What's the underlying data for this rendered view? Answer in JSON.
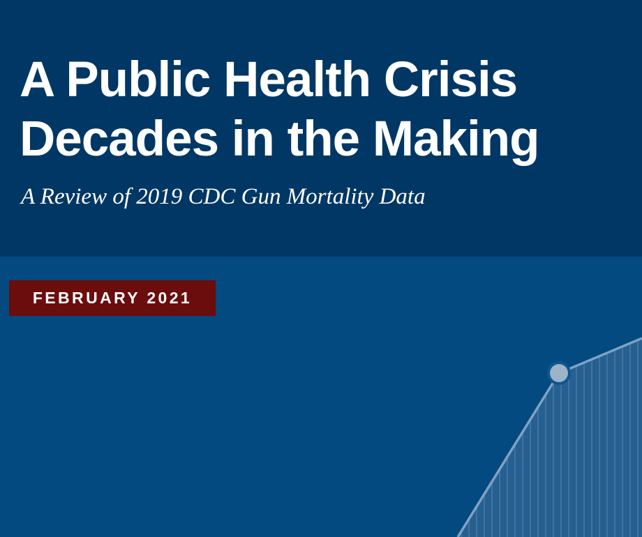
{
  "header": {
    "title_line1": "A Public Health Crisis",
    "title_line2": "Decades in the Making",
    "subtitle": "A Review of 2019 CDC Gun Mortality Data"
  },
  "badge": {
    "date": "FEBRUARY 2021"
  },
  "colors": {
    "header_bg": "#003764",
    "body_bg": "#034a80",
    "badge_bg": "#6b0d0d",
    "text": "#ffffff",
    "chart_line": "#7fa2c4"
  },
  "icons": {
    "decorative_chart": "rising-line-graphic"
  }
}
